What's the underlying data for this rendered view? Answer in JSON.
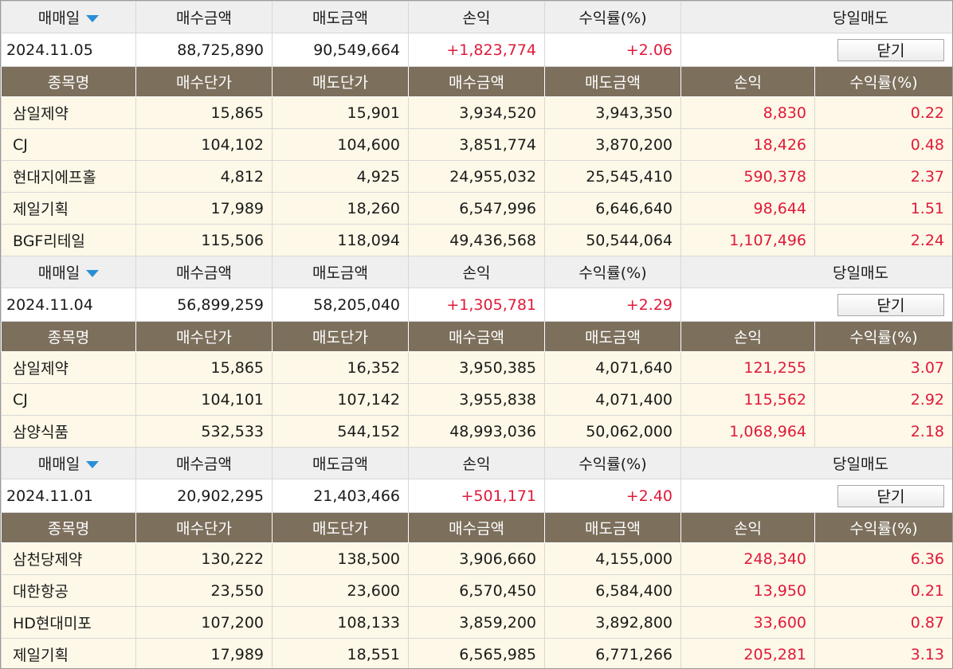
{
  "headers": {
    "summary": [
      "매매일",
      "매수금액",
      "매도금액",
      "손익",
      "수익률(%)",
      "당일매도"
    ],
    "detail": [
      "종목명",
      "매수단가",
      "매도단가",
      "매수금액",
      "매도금액",
      "손익",
      "수익률(%)"
    ],
    "close_label": "닫기",
    "sort_icon": "chevron-down-icon"
  },
  "colors": {
    "profit": "#e0193a",
    "detail_header_bg": "#7c6f5c",
    "detail_row_bg": "#fdf8e7",
    "summary_header_bg": "#efefef",
    "sort_arrow": "#2a8fd6"
  },
  "days": [
    {
      "date": "2024.11.05",
      "buy_amount": "88,725,890",
      "sell_amount": "90,549,664",
      "profit": "+1,823,774",
      "rate": "+2.06",
      "stocks": [
        {
          "name": "삼일제약",
          "buy_price": "15,865",
          "sell_price": "15,901",
          "buy_amount": "3,934,520",
          "sell_amount": "3,943,350",
          "profit": "8,830",
          "rate": "0.22"
        },
        {
          "name": "CJ",
          "buy_price": "104,102",
          "sell_price": "104,600",
          "buy_amount": "3,851,774",
          "sell_amount": "3,870,200",
          "profit": "18,426",
          "rate": "0.48"
        },
        {
          "name": "현대지에프홀",
          "buy_price": "4,812",
          "sell_price": "4,925",
          "buy_amount": "24,955,032",
          "sell_amount": "25,545,410",
          "profit": "590,378",
          "rate": "2.37"
        },
        {
          "name": "제일기획",
          "buy_price": "17,989",
          "sell_price": "18,260",
          "buy_amount": "6,547,996",
          "sell_amount": "6,646,640",
          "profit": "98,644",
          "rate": "1.51"
        },
        {
          "name": "BGF리테일",
          "buy_price": "115,506",
          "sell_price": "118,094",
          "buy_amount": "49,436,568",
          "sell_amount": "50,544,064",
          "profit": "1,107,496",
          "rate": "2.24"
        }
      ]
    },
    {
      "date": "2024.11.04",
      "buy_amount": "56,899,259",
      "sell_amount": "58,205,040",
      "profit": "+1,305,781",
      "rate": "+2.29",
      "stocks": [
        {
          "name": "삼일제약",
          "buy_price": "15,865",
          "sell_price": "16,352",
          "buy_amount": "3,950,385",
          "sell_amount": "4,071,640",
          "profit": "121,255",
          "rate": "3.07"
        },
        {
          "name": "CJ",
          "buy_price": "104,101",
          "sell_price": "107,142",
          "buy_amount": "3,955,838",
          "sell_amount": "4,071,400",
          "profit": "115,562",
          "rate": "2.92"
        },
        {
          "name": "삼양식품",
          "buy_price": "532,533",
          "sell_price": "544,152",
          "buy_amount": "48,993,036",
          "sell_amount": "50,062,000",
          "profit": "1,068,964",
          "rate": "2.18"
        }
      ]
    },
    {
      "date": "2024.11.01",
      "buy_amount": "20,902,295",
      "sell_amount": "21,403,466",
      "profit": "+501,171",
      "rate": "+2.40",
      "stocks": [
        {
          "name": "삼천당제약",
          "buy_price": "130,222",
          "sell_price": "138,500",
          "buy_amount": "3,906,660",
          "sell_amount": "4,155,000",
          "profit": "248,340",
          "rate": "6.36"
        },
        {
          "name": "대한항공",
          "buy_price": "23,550",
          "sell_price": "23,600",
          "buy_amount": "6,570,450",
          "sell_amount": "6,584,400",
          "profit": "13,950",
          "rate": "0.21"
        },
        {
          "name": "HD현대미포",
          "buy_price": "107,200",
          "sell_price": "108,133",
          "buy_amount": "3,859,200",
          "sell_amount": "3,892,800",
          "profit": "33,600",
          "rate": "0.87"
        },
        {
          "name": "제일기획",
          "buy_price": "17,989",
          "sell_price": "18,551",
          "buy_amount": "6,565,985",
          "sell_amount": "6,771,266",
          "profit": "205,281",
          "rate": "3.13"
        }
      ]
    }
  ]
}
